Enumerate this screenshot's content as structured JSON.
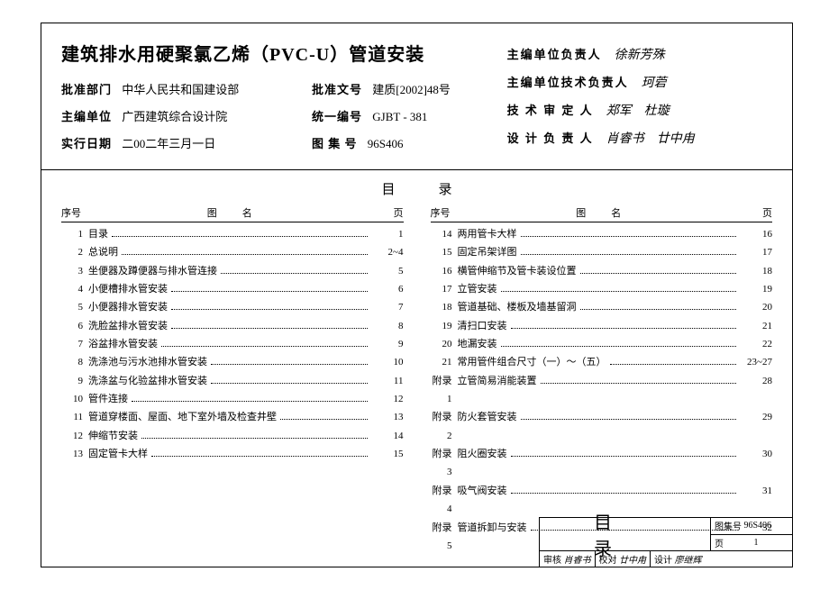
{
  "title": "建筑排水用硬聚氯乙烯（PVC-U）管道安装",
  "info": {
    "approve_dept_label": "批准部门",
    "approve_dept": "中华人民共和国建设部",
    "approve_doc_label": "批准文号",
    "approve_doc": "建质[2002]48号",
    "editor_unit_label": "主编单位",
    "editor_unit": "广西建筑综合设计院",
    "unified_no_label": "统一编号",
    "unified_no": "GJBT - 381",
    "effective_date_label": "实行日期",
    "effective_date": "二00二年三月一日",
    "atlas_no_label": "图 集 号",
    "atlas_no": "96S406"
  },
  "signatures": {
    "rows": [
      {
        "label": "主编单位负责人",
        "val": "徐新芳殊"
      },
      {
        "label": "主编单位技术负责人",
        "val": "珂菪"
      },
      {
        "label": "技 术 审 定 人",
        "val": "郑军　杜璇"
      },
      {
        "label": "设 计 负 责 人",
        "val": "肖睿书　廿中甪"
      }
    ]
  },
  "toc": {
    "heading": "目录",
    "col_no": "序号",
    "col_name": "图名",
    "col_page": "页",
    "left": [
      {
        "no": "1",
        "name": "目录",
        "page": "1"
      },
      {
        "no": "2",
        "name": "总说明",
        "page": "2~4"
      },
      {
        "no": "3",
        "name": "坐便器及蹲便器与排水管连接",
        "page": "5"
      },
      {
        "no": "4",
        "name": "小便槽排水管安装",
        "page": "6"
      },
      {
        "no": "5",
        "name": "小便器排水管安装",
        "page": "7"
      },
      {
        "no": "6",
        "name": "洗脸盆排水管安装",
        "page": "8"
      },
      {
        "no": "7",
        "name": "浴盆排水管安装",
        "page": "9"
      },
      {
        "no": "8",
        "name": "洗涤池与污水池排水管安装",
        "page": "10"
      },
      {
        "no": "9",
        "name": "洗涤盆与化验盆排水管安装",
        "page": "11"
      },
      {
        "no": "10",
        "name": "管件连接",
        "page": "12"
      },
      {
        "no": "11",
        "name": "管道穿楼面、屋面、地下室外墙及检查井壁",
        "page": "13"
      },
      {
        "no": "12",
        "name": "伸缩节安装",
        "page": "14"
      },
      {
        "no": "13",
        "name": "固定管卡大样",
        "page": "15"
      }
    ],
    "right": [
      {
        "no": "14",
        "name": "两用管卡大样",
        "page": "16"
      },
      {
        "no": "15",
        "name": "固定吊架详图",
        "page": "17"
      },
      {
        "no": "16",
        "name": "横管伸缩节及管卡装设位置",
        "page": "18"
      },
      {
        "no": "17",
        "name": "立管安装",
        "page": "19"
      },
      {
        "no": "18",
        "name": "管道基础、楼板及墙基留洞",
        "page": "20"
      },
      {
        "no": "19",
        "name": "清扫口安装",
        "page": "21"
      },
      {
        "no": "20",
        "name": "地漏安装",
        "page": "22"
      },
      {
        "no": "21",
        "name": "常用管件组合尺寸（一）～（五）",
        "page": "23~27"
      },
      {
        "no": "附录 1",
        "name": "立管简易消能装置",
        "page": "28"
      },
      {
        "no": "附录 2",
        "name": "防火套管安装",
        "page": "29"
      },
      {
        "no": "附录 3",
        "name": "阻火圈安装",
        "page": "30"
      },
      {
        "no": "附录 4",
        "name": "吸气阀安装",
        "page": "31"
      },
      {
        "no": "附录 5",
        "name": "管道拆卸与安装",
        "page": "32"
      }
    ]
  },
  "footer": {
    "block_title": "目录",
    "atlas_label": "图集号",
    "atlas_no": "96S406",
    "page_label": "页",
    "page_no": "1",
    "check_label": "审核",
    "check_val": "肖睿书",
    "proof_label": "校对",
    "proof_val": "廿中甪",
    "design_label": "设计",
    "design_val": "廖继辉"
  }
}
